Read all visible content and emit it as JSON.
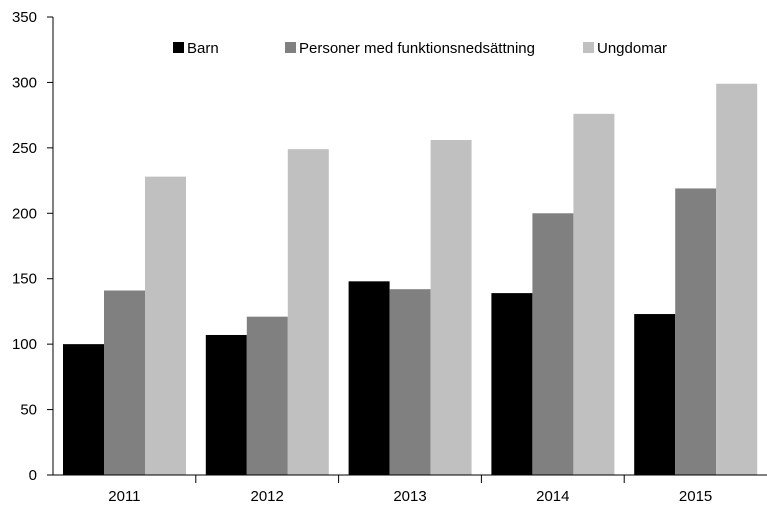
{
  "chart_data": {
    "type": "bar",
    "title": "",
    "xlabel": "",
    "ylabel": "",
    "categories": [
      "2011",
      "2012",
      "2013",
      "2014",
      "2015"
    ],
    "ylim": [
      0,
      350
    ],
    "yticks": [
      "0",
      "50",
      "100",
      "150",
      "200",
      "250",
      "300",
      "350"
    ],
    "grid": false,
    "legend_position": "top",
    "series": [
      {
        "name": "Barn",
        "color": "#000000",
        "values": [
          100,
          107,
          148,
          139,
          123
        ]
      },
      {
        "name": "Personer med funktionsnedsättning",
        "color": "#808080",
        "values": [
          141,
          121,
          142,
          200,
          219
        ]
      },
      {
        "name": "Ungdomar",
        "color": "#c0c0c0",
        "values": [
          228,
          249,
          256,
          276,
          299
        ]
      }
    ]
  }
}
